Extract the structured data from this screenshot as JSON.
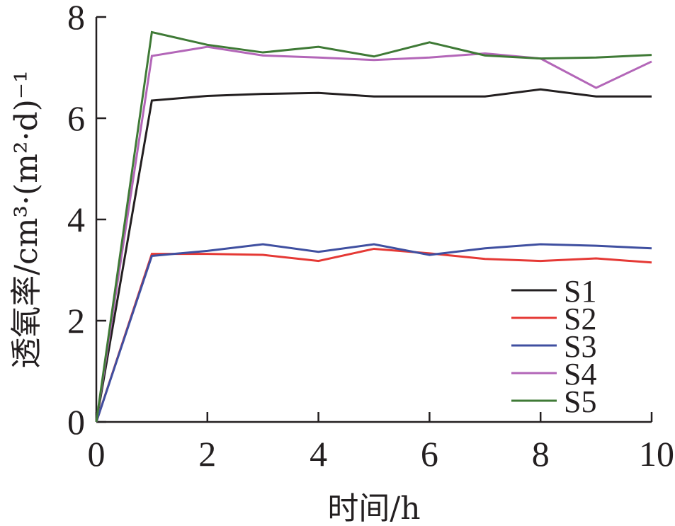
{
  "chart_data": {
    "type": "line",
    "xlabel": "时间/h",
    "ylabel": "透氧率/cm³·(m²·d)⁻¹",
    "xlim": [
      0,
      10
    ],
    "ylim": [
      0,
      8
    ],
    "xticks": [
      0,
      2,
      4,
      6,
      8,
      10
    ],
    "yticks": [
      0,
      2,
      4,
      6,
      8
    ],
    "x": [
      0,
      1,
      2,
      3,
      4,
      5,
      6,
      7,
      8,
      9,
      10
    ],
    "legend_position": "bottom-right",
    "grid": false,
    "series": [
      {
        "name": "S1",
        "color": "#231f20",
        "values": [
          0,
          6.35,
          6.44,
          6.48,
          6.5,
          6.43,
          6.43,
          6.43,
          6.57,
          6.43,
          6.43
        ]
      },
      {
        "name": "S2",
        "color": "#e53935",
        "values": [
          0,
          3.32,
          3.32,
          3.3,
          3.18,
          3.42,
          3.33,
          3.22,
          3.18,
          3.23,
          3.15
        ]
      },
      {
        "name": "S3",
        "color": "#3f4fa0",
        "values": [
          0,
          3.28,
          3.38,
          3.51,
          3.36,
          3.51,
          3.3,
          3.43,
          3.51,
          3.48,
          3.43
        ]
      },
      {
        "name": "S4",
        "color": "#b366b8",
        "values": [
          0,
          7.23,
          7.41,
          7.24,
          7.2,
          7.15,
          7.2,
          7.28,
          7.18,
          6.6,
          7.12
        ]
      },
      {
        "name": "S5",
        "color": "#3f7a36",
        "values": [
          0,
          7.7,
          7.45,
          7.3,
          7.41,
          7.22,
          7.5,
          7.24,
          7.18,
          7.2,
          7.25
        ]
      }
    ]
  }
}
